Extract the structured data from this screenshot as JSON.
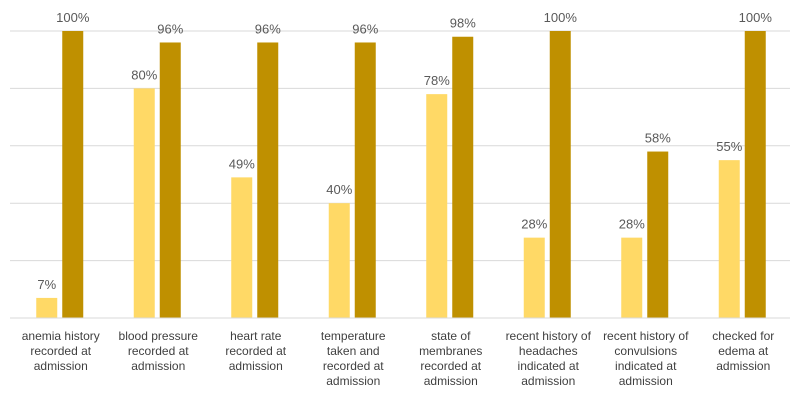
{
  "chart_data": {
    "type": "bar",
    "title": "",
    "xlabel": "",
    "ylabel": "",
    "ylim": [
      0,
      100
    ],
    "grid": true,
    "gridlines": [
      20,
      40,
      60,
      80,
      100
    ],
    "value_suffix": "%",
    "categories": [
      [
        "anemia history",
        "recorded at",
        "admission"
      ],
      [
        "blood pressure",
        "recorded at",
        "admission"
      ],
      [
        "heart rate",
        "recorded at",
        "admission"
      ],
      [
        "temperature",
        "taken and",
        "recorded at",
        "admission"
      ],
      [
        "state of",
        "membranes",
        "recorded at",
        "admission"
      ],
      [
        "recent history of",
        "headaches",
        "indicated at",
        "admission"
      ],
      [
        "recent history of",
        "convulsions",
        "indicated at",
        "admission"
      ],
      [
        "checked for",
        "edema at",
        "admission"
      ]
    ],
    "series": [
      {
        "color": "#FFD966",
        "values": [
          7,
          80,
          49,
          40,
          78,
          28,
          28,
          55
        ]
      },
      {
        "color": "#BF9000",
        "values": [
          100,
          96,
          96,
          96,
          98,
          100,
          58,
          100
        ]
      }
    ],
    "label_color": "#595959",
    "grid_color": "#D9D9D9"
  }
}
